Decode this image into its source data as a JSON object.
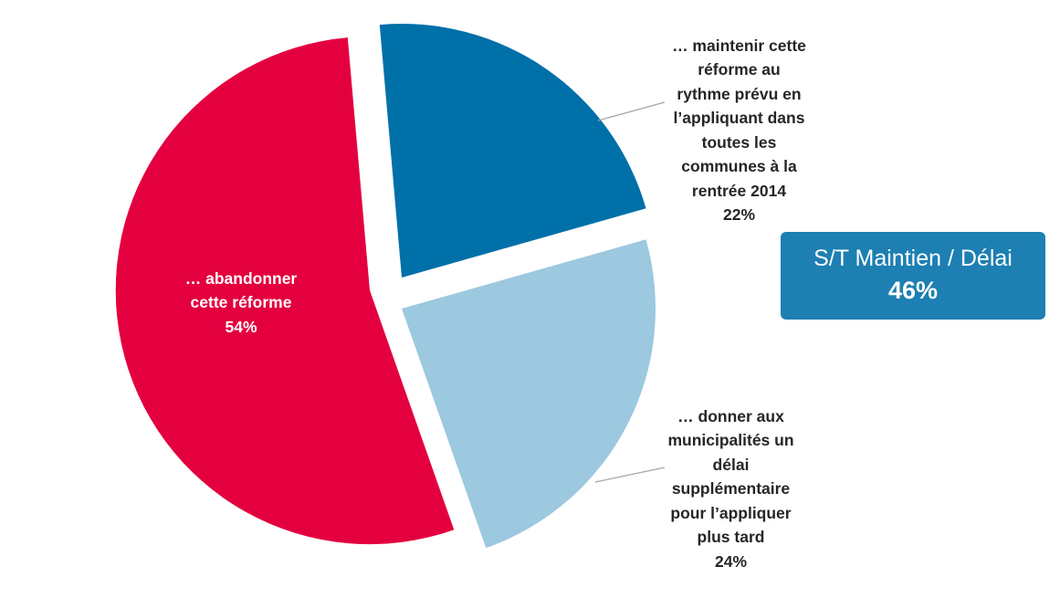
{
  "colors": {
    "abandon": "#E4003F",
    "maintenir": "#0070A8",
    "delai": "#9CC8E0",
    "leader": "#A6A6A6",
    "box": "#1D7FB2"
  },
  "chart_data": {
    "type": "pie",
    "start_angle_deg": -5,
    "slices": [
      {
        "key": "maintenir",
        "label": "… maintenir cette réforme au rythme prévu en l’appliquant dans toutes les communes à la rentrée 2014",
        "value": 22,
        "value_label": "22%"
      },
      {
        "key": "delai",
        "label": "… donner aux municipalités un délai supplémentaire pour l’appliquer plus tard",
        "value": 24,
        "value_label": "24%"
      },
      {
        "key": "abandon",
        "label": "… abandonner cette réforme",
        "value": 54,
        "value_label": "54%"
      }
    ]
  },
  "labels": {
    "maintenir": "… maintenir cette\nréforme au\nrythme prévu en\nl’appliquant dans\ntoutes les\ncommunes à la\nrentrée 2014",
    "maintenir_pct": "22%",
    "delai": "… donner aux\nmunicipalités un\ndélai\nsupplémentaire\npour l’appliquer\nplus tard",
    "delai_pct": "24%",
    "abandon": "… abandonner\ncette réforme",
    "abandon_pct": "54%"
  },
  "summary": {
    "title": "S/T Maintien / Délai",
    "value": "46%"
  }
}
